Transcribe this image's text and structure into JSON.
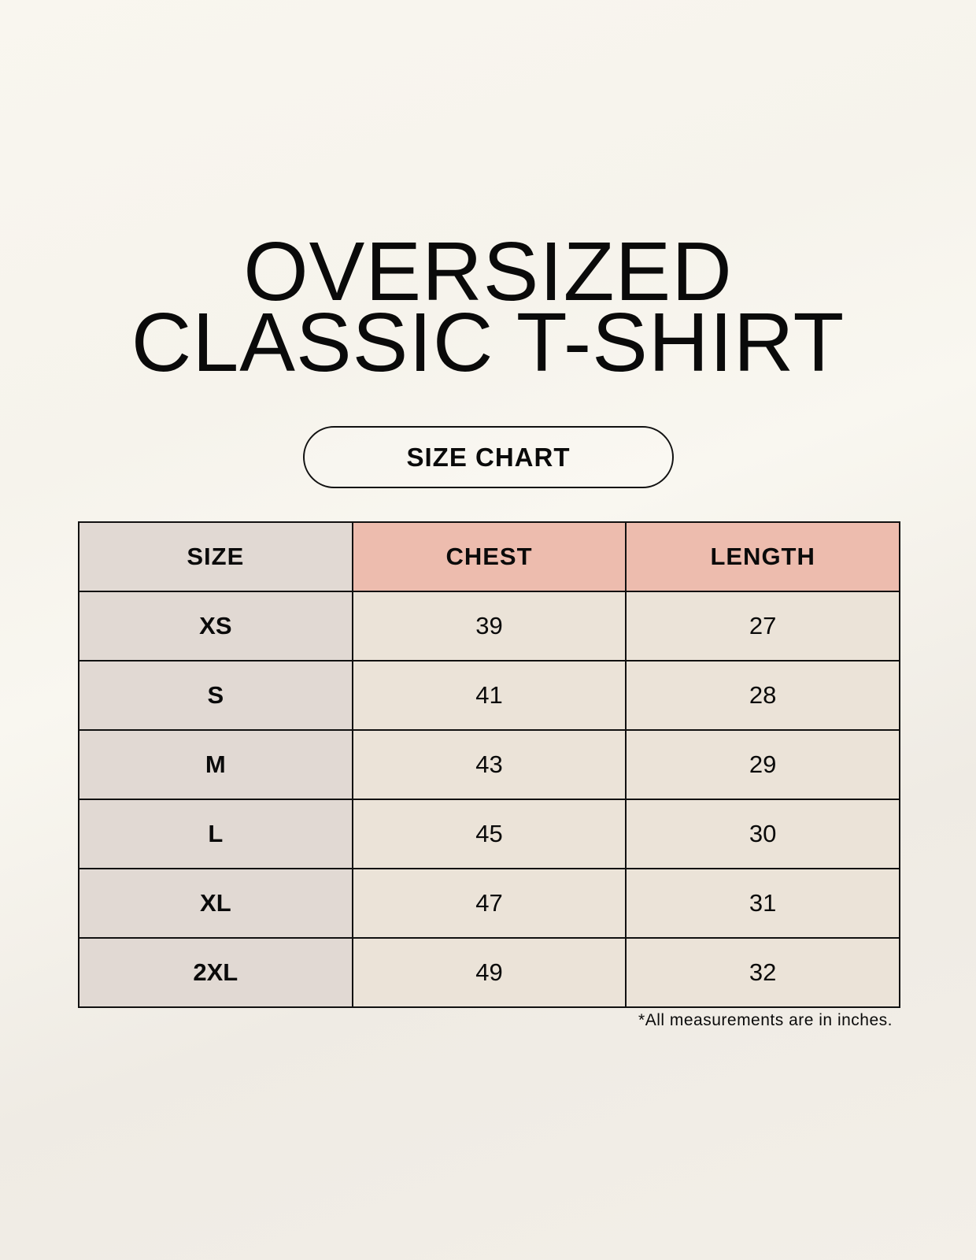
{
  "title": {
    "line1": "OVERSIZED",
    "line2": "CLASSIC T-SHIRT"
  },
  "badge": "SIZE CHART",
  "table": {
    "headers": [
      "SIZE",
      "CHEST",
      "LENGTH"
    ],
    "rows": [
      {
        "size": "XS",
        "chest": "39",
        "length": "27"
      },
      {
        "size": "S",
        "chest": "41",
        "length": "28"
      },
      {
        "size": "M",
        "chest": "43",
        "length": "29"
      },
      {
        "size": "L",
        "chest": "45",
        "length": "30"
      },
      {
        "size": "XL",
        "chest": "47",
        "length": "31"
      },
      {
        "size": "2XL",
        "chest": "49",
        "length": "32"
      }
    ]
  },
  "footnote": "*All measurements are in inches.",
  "colors": {
    "size_column": "#e1d9d3",
    "header_accent": "#edbcae",
    "value_cells": "#ebe3d8"
  }
}
